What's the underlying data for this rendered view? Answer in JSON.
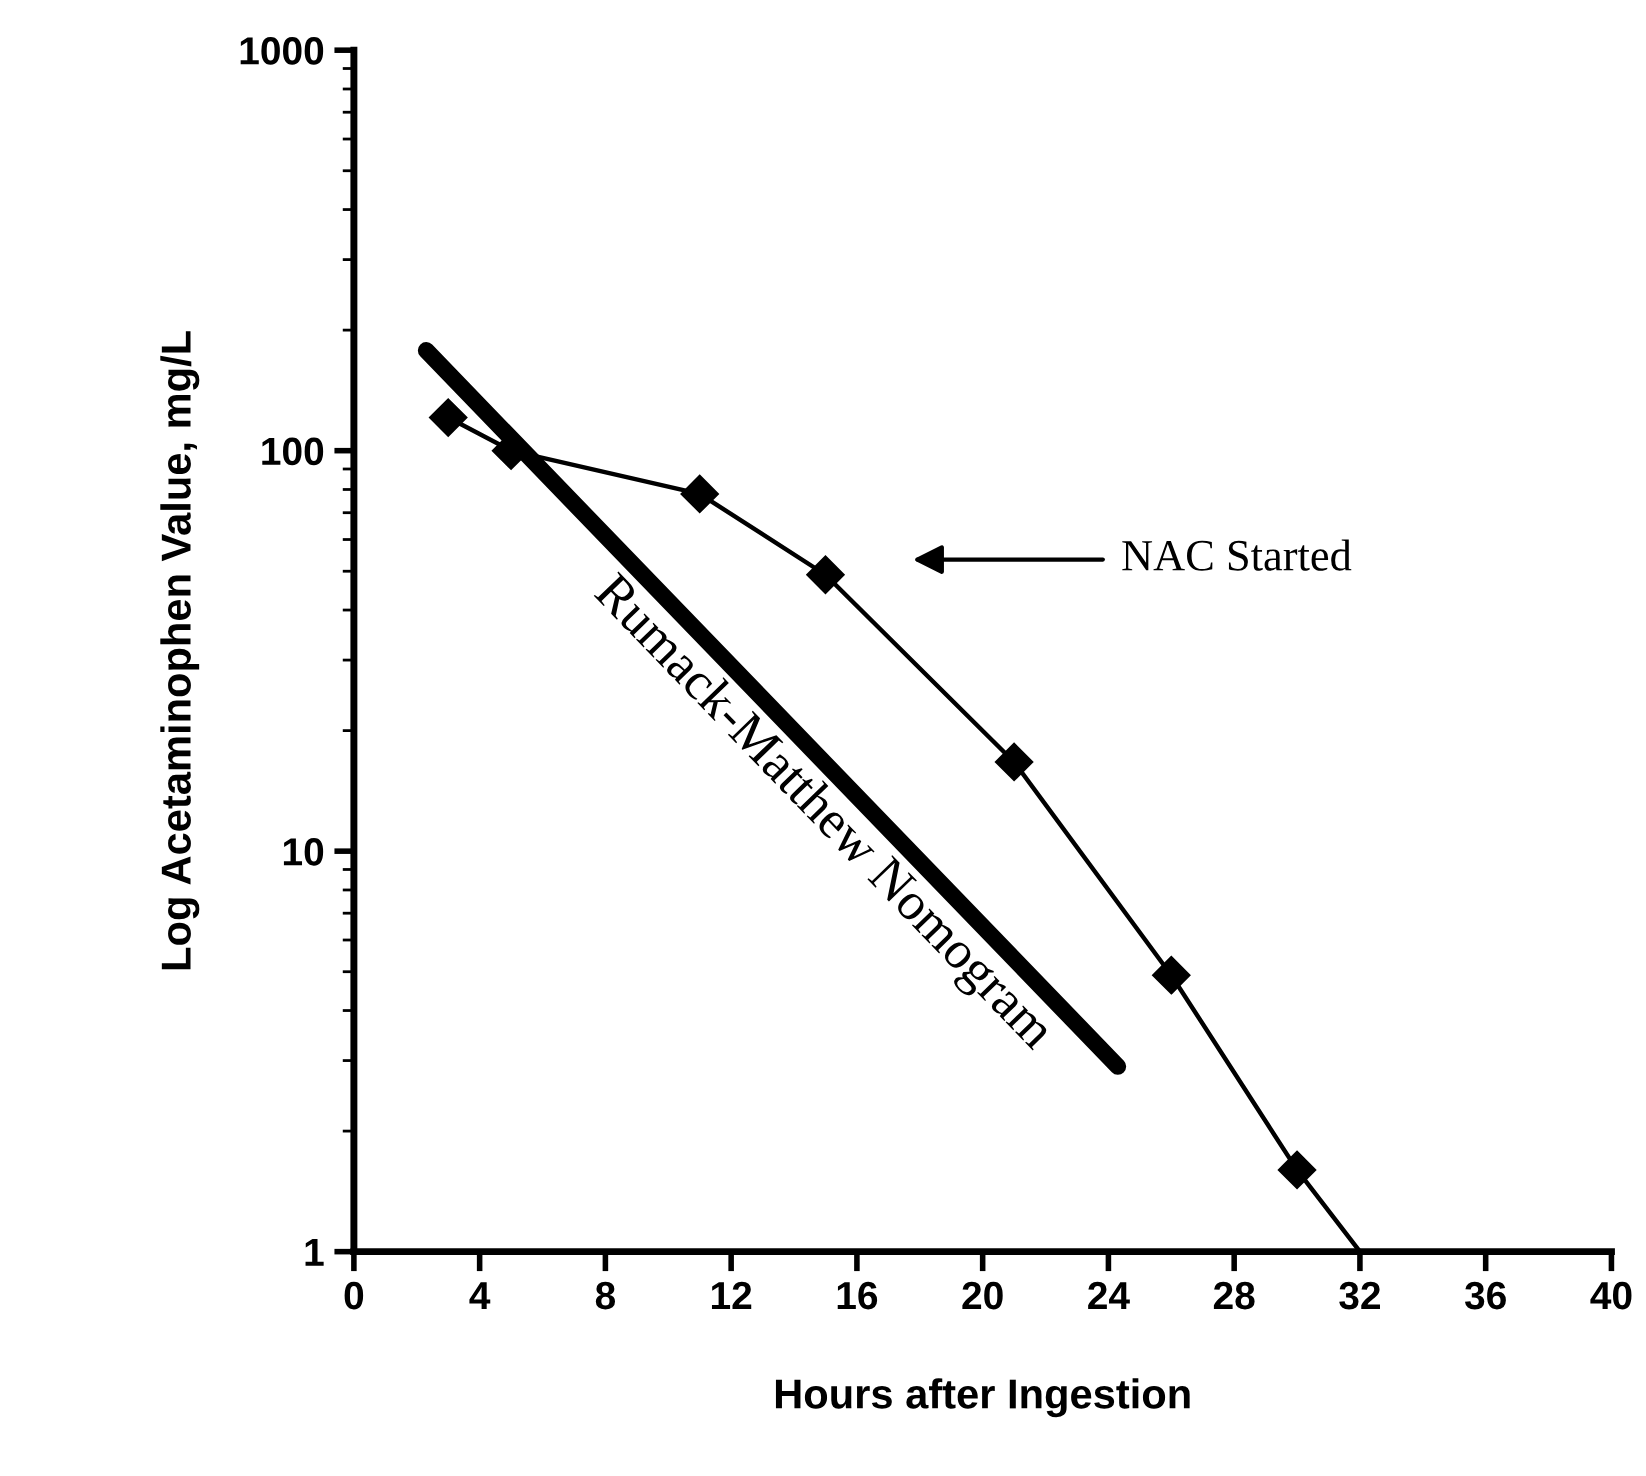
{
  "chart_data": {
    "type": "line",
    "xlabel": "Hours after Ingestion",
    "ylabel": "Log Acetaminophen Value, mg/L",
    "series": [
      {
        "color": "#000000",
        "marker": "diamond",
        "x": [
          3,
          5,
          11,
          15,
          21,
          26,
          30
        ],
        "values": [
          121,
          100,
          78,
          49,
          16.7,
          4.9,
          1.6
        ]
      },
      {
        "color": "#000000",
        "marker": "none",
        "x": [
          30,
          32
        ],
        "values": [
          1.6,
          1.0
        ]
      },
      {
        "name": "Rumack-Matthew Nomogram",
        "color": "#000000",
        "marker": "none",
        "x": [
          2.3,
          24.3
        ],
        "values": [
          178,
          2.9
        ]
      }
    ],
    "annotations": [
      "NAC Started"
    ],
    "log": "y",
    "xlim": [
      0,
      40
    ],
    "xticks": [
      0,
      4,
      8,
      12,
      16,
      20,
      24,
      28,
      32,
      36,
      40
    ],
    "ylim": [
      1,
      1000
    ],
    "yticks": [
      1,
      10,
      100,
      1000
    ],
    "grid": false
  }
}
